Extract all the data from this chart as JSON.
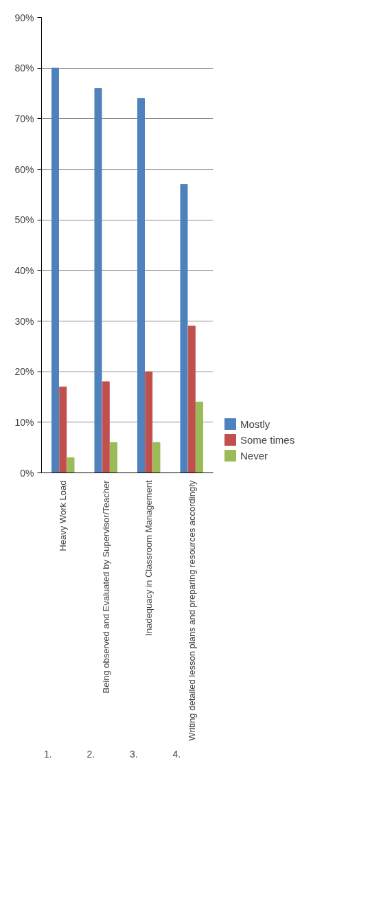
{
  "chart_data": {
    "type": "bar",
    "categories": [
      "Heavy Work Load",
      "Being observed and Evaluated by Supervisor/Teacher",
      "Inadequacy in Classroom Management",
      "Writing detailed lesson plans and preparing resources accordingly"
    ],
    "series": [
      {
        "name": "Mostly",
        "color": "#4f81bd",
        "values": [
          80,
          76,
          74,
          57
        ]
      },
      {
        "name": "Some times",
        "color": "#c0504d",
        "values": [
          17,
          18,
          20,
          29
        ]
      },
      {
        "name": "Never",
        "color": "#9bbb59",
        "values": [
          3,
          6,
          6,
          14
        ]
      }
    ],
    "annotations": [
      "1.",
      "2.",
      "3.",
      "4."
    ],
    "ylim": [
      0,
      90
    ],
    "yticks": [
      {
        "value": 0,
        "label": "0%"
      },
      {
        "value": 10,
        "label": "10%"
      },
      {
        "value": 20,
        "label": "20%"
      },
      {
        "value": 30,
        "label": "30%"
      },
      {
        "value": 40,
        "label": "40%"
      },
      {
        "value": 50,
        "label": "50%"
      },
      {
        "value": 60,
        "label": "60%"
      },
      {
        "value": 70,
        "label": "70%"
      },
      {
        "value": 80,
        "label": "80%"
      },
      {
        "value": 90,
        "label": "90%"
      }
    ],
    "grid": "y",
    "legend": "right"
  }
}
